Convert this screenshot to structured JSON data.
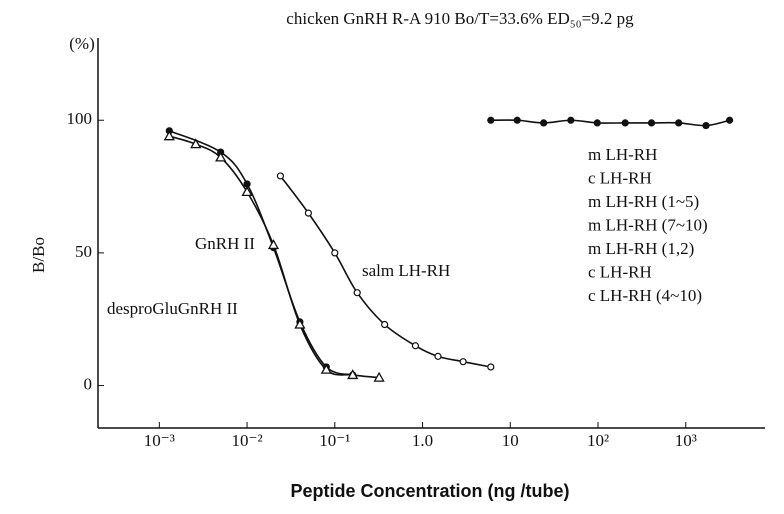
{
  "chart_data": {
    "type": "line",
    "title": "chicken GnRH R-A 910   Bo/T=33.6%   ED₅₀=9.2 pg",
    "y_unit": "(%)",
    "y_label": "B/Bo",
    "x_label": "Peptide Concentration (ng /tube)",
    "x_scale": "log",
    "xlim": [
      0.0002,
      8000
    ],
    "ylim": [
      -16,
      131
    ],
    "xticks": [
      {
        "value": 0.001,
        "label": "10⁻³"
      },
      {
        "value": 0.01,
        "label": "10⁻²"
      },
      {
        "value": 0.1,
        "label": "10⁻¹"
      },
      {
        "value": 1,
        "label": "1.0"
      },
      10,
      {
        "value": 100,
        "label": "10²"
      },
      {
        "value": 1000,
        "label": "10³"
      }
    ],
    "yticks": [
      0,
      50,
      100
    ],
    "series": [
      {
        "name": "GnRH II",
        "color": "#111111",
        "marker": "filled-circle",
        "x": [
          0.0013,
          0.005,
          0.01,
          0.02,
          0.04,
          0.08,
          0.16
        ],
        "values": [
          96,
          88,
          76,
          52,
          24,
          7,
          4
        ]
      },
      {
        "name": "desproGluGnRH II",
        "color": "#111111",
        "marker": "open-triangle",
        "x": [
          0.0013,
          0.0026,
          0.005,
          0.01,
          0.02,
          0.04,
          0.08,
          0.16,
          0.32
        ],
        "values": [
          94,
          91,
          86,
          73,
          53,
          23,
          6,
          4,
          3
        ]
      },
      {
        "name": "salm LH-RH",
        "color": "#111111",
        "marker": "open-circle",
        "x": [
          0.024,
          0.05,
          0.1,
          0.18,
          0.37,
          0.83,
          1.5,
          2.9,
          6
        ],
        "values": [
          79,
          65,
          50,
          35,
          23,
          15,
          11,
          9,
          7
        ]
      },
      {
        "color": "#111111",
        "marker": "filled-circle",
        "x": [
          6,
          12,
          24,
          49,
          98,
          204,
          407,
          830,
          1700,
          3160
        ],
        "values": [
          100,
          100,
          99,
          100,
          99,
          99,
          99,
          99,
          98,
          100
        ]
      }
    ],
    "flat_labels": [
      "m LH-RH",
      "c LH-RH",
      "m LH-RH (1~5)",
      "m LH-RH (7~10)",
      "m LH-RH (1,2)",
      "c LH-RH",
      "c LH-RH (4~10)"
    ]
  }
}
